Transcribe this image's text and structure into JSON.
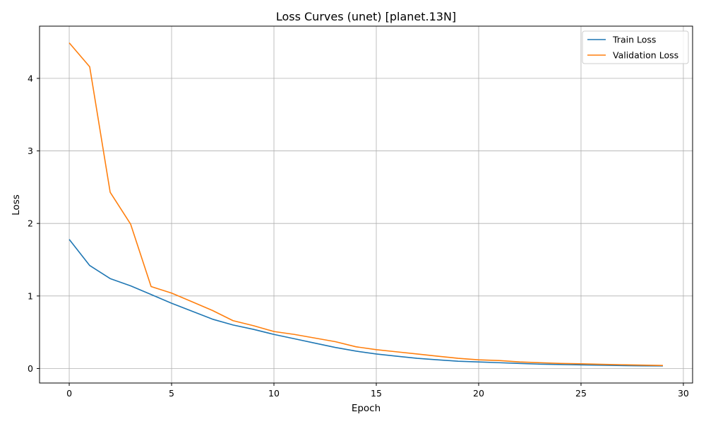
{
  "chart_data": {
    "type": "line",
    "title": "Loss Curves (unet) [planet.13N]",
    "xlabel": "Epoch",
    "ylabel": "Loss",
    "xlim": [
      -1.45,
      30.45
    ],
    "ylim": [
      -0.2,
      4.72
    ],
    "xticks": [
      0,
      5,
      10,
      15,
      20,
      25,
      30
    ],
    "yticks": [
      0,
      1,
      2,
      3,
      4
    ],
    "grid": true,
    "legend_position": "top-right",
    "x": [
      0,
      1,
      2,
      3,
      4,
      5,
      6,
      7,
      8,
      9,
      10,
      11,
      12,
      13,
      14,
      15,
      16,
      17,
      18,
      19,
      20,
      21,
      22,
      23,
      24,
      25,
      26,
      27,
      28,
      29
    ],
    "series": [
      {
        "name": "Train Loss",
        "color": "#1f77b4",
        "values": [
          1.78,
          1.42,
          1.24,
          1.14,
          1.02,
          0.9,
          0.79,
          0.68,
          0.6,
          0.54,
          0.47,
          0.41,
          0.35,
          0.29,
          0.24,
          0.2,
          0.17,
          0.14,
          0.12,
          0.1,
          0.09,
          0.08,
          0.07,
          0.06,
          0.055,
          0.05,
          0.045,
          0.04,
          0.037,
          0.035
        ]
      },
      {
        "name": "Validation Loss",
        "color": "#ff7f0e",
        "values": [
          4.49,
          4.16,
          2.43,
          1.99,
          1.13,
          1.04,
          0.92,
          0.8,
          0.66,
          0.59,
          0.51,
          0.47,
          0.42,
          0.37,
          0.3,
          0.26,
          0.23,
          0.2,
          0.17,
          0.14,
          0.12,
          0.11,
          0.09,
          0.08,
          0.07,
          0.065,
          0.058,
          0.052,
          0.047,
          0.042
        ]
      }
    ]
  }
}
